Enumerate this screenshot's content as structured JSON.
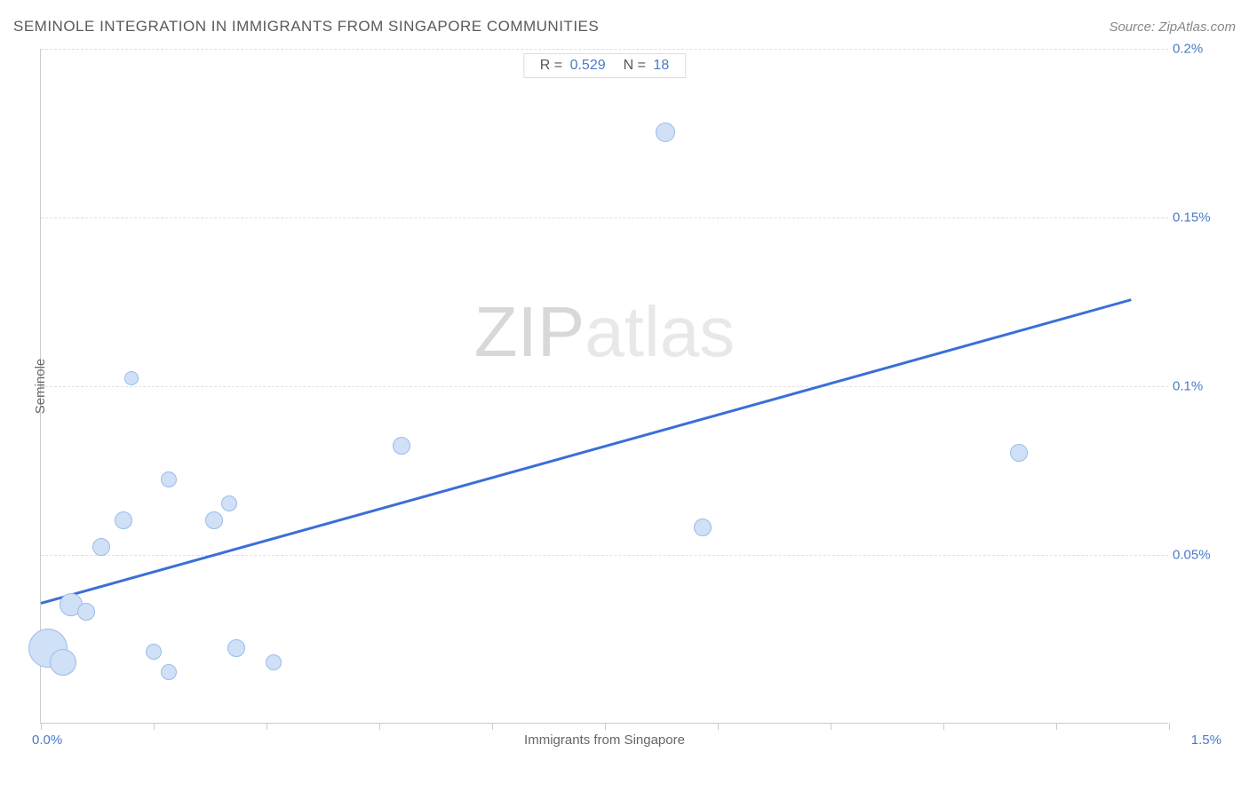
{
  "title": "SEMINOLE INTEGRATION IN IMMIGRANTS FROM SINGAPORE COMMUNITIES",
  "source": "Source: ZipAtlas.com",
  "watermark_bold": "ZIP",
  "watermark_light": "atlas",
  "stats": {
    "r_label": "R =",
    "r_value": "0.529",
    "n_label": "N =",
    "n_value": "18"
  },
  "chart": {
    "type": "scatter",
    "x_axis_title": "Immigrants from Singapore",
    "y_axis_title": "Seminole",
    "xlim": [
      0.0,
      1.5
    ],
    "ylim": [
      0.0,
      0.2
    ],
    "x_start_label": "0.0%",
    "x_end_label": "1.5%",
    "y_ticks": [
      {
        "value": 0.05,
        "label": "0.05%"
      },
      {
        "value": 0.1,
        "label": "0.1%"
      },
      {
        "value": 0.15,
        "label": "0.15%"
      },
      {
        "value": 0.2,
        "label": "0.2%"
      }
    ],
    "x_tick_values": [
      0.0,
      0.15,
      0.3,
      0.45,
      0.6,
      0.75,
      0.9,
      1.05,
      1.2,
      1.35,
      1.5
    ],
    "trend_line": {
      "x1": 0.0,
      "y1": 0.036,
      "x2": 1.45,
      "y2": 0.126,
      "color": "#3a6fd8",
      "width": 2.5
    },
    "bubble_fill": "#cfe0f7",
    "bubble_stroke": "#9bbce8",
    "grid_color": "#e0e0e0",
    "axis_color": "#cccccc",
    "tick_label_color": "#4a7ac7",
    "axis_title_color": "#666666",
    "background_color": "#ffffff",
    "points": [
      {
        "x": 0.01,
        "y": 0.022,
        "r": 22
      },
      {
        "x": 0.03,
        "y": 0.018,
        "r": 15
      },
      {
        "x": 0.04,
        "y": 0.035,
        "r": 13
      },
      {
        "x": 0.06,
        "y": 0.033,
        "r": 10
      },
      {
        "x": 0.08,
        "y": 0.052,
        "r": 10
      },
      {
        "x": 0.11,
        "y": 0.06,
        "r": 10
      },
      {
        "x": 0.15,
        "y": 0.021,
        "r": 9
      },
      {
        "x": 0.17,
        "y": 0.015,
        "r": 9
      },
      {
        "x": 0.17,
        "y": 0.072,
        "r": 9
      },
      {
        "x": 0.12,
        "y": 0.102,
        "r": 8
      },
      {
        "x": 0.23,
        "y": 0.06,
        "r": 10
      },
      {
        "x": 0.25,
        "y": 0.065,
        "r": 9
      },
      {
        "x": 0.26,
        "y": 0.022,
        "r": 10
      },
      {
        "x": 0.31,
        "y": 0.018,
        "r": 9
      },
      {
        "x": 0.48,
        "y": 0.082,
        "r": 10
      },
      {
        "x": 0.83,
        "y": 0.175,
        "r": 11
      },
      {
        "x": 0.88,
        "y": 0.058,
        "r": 10
      },
      {
        "x": 1.3,
        "y": 0.08,
        "r": 10
      }
    ]
  }
}
